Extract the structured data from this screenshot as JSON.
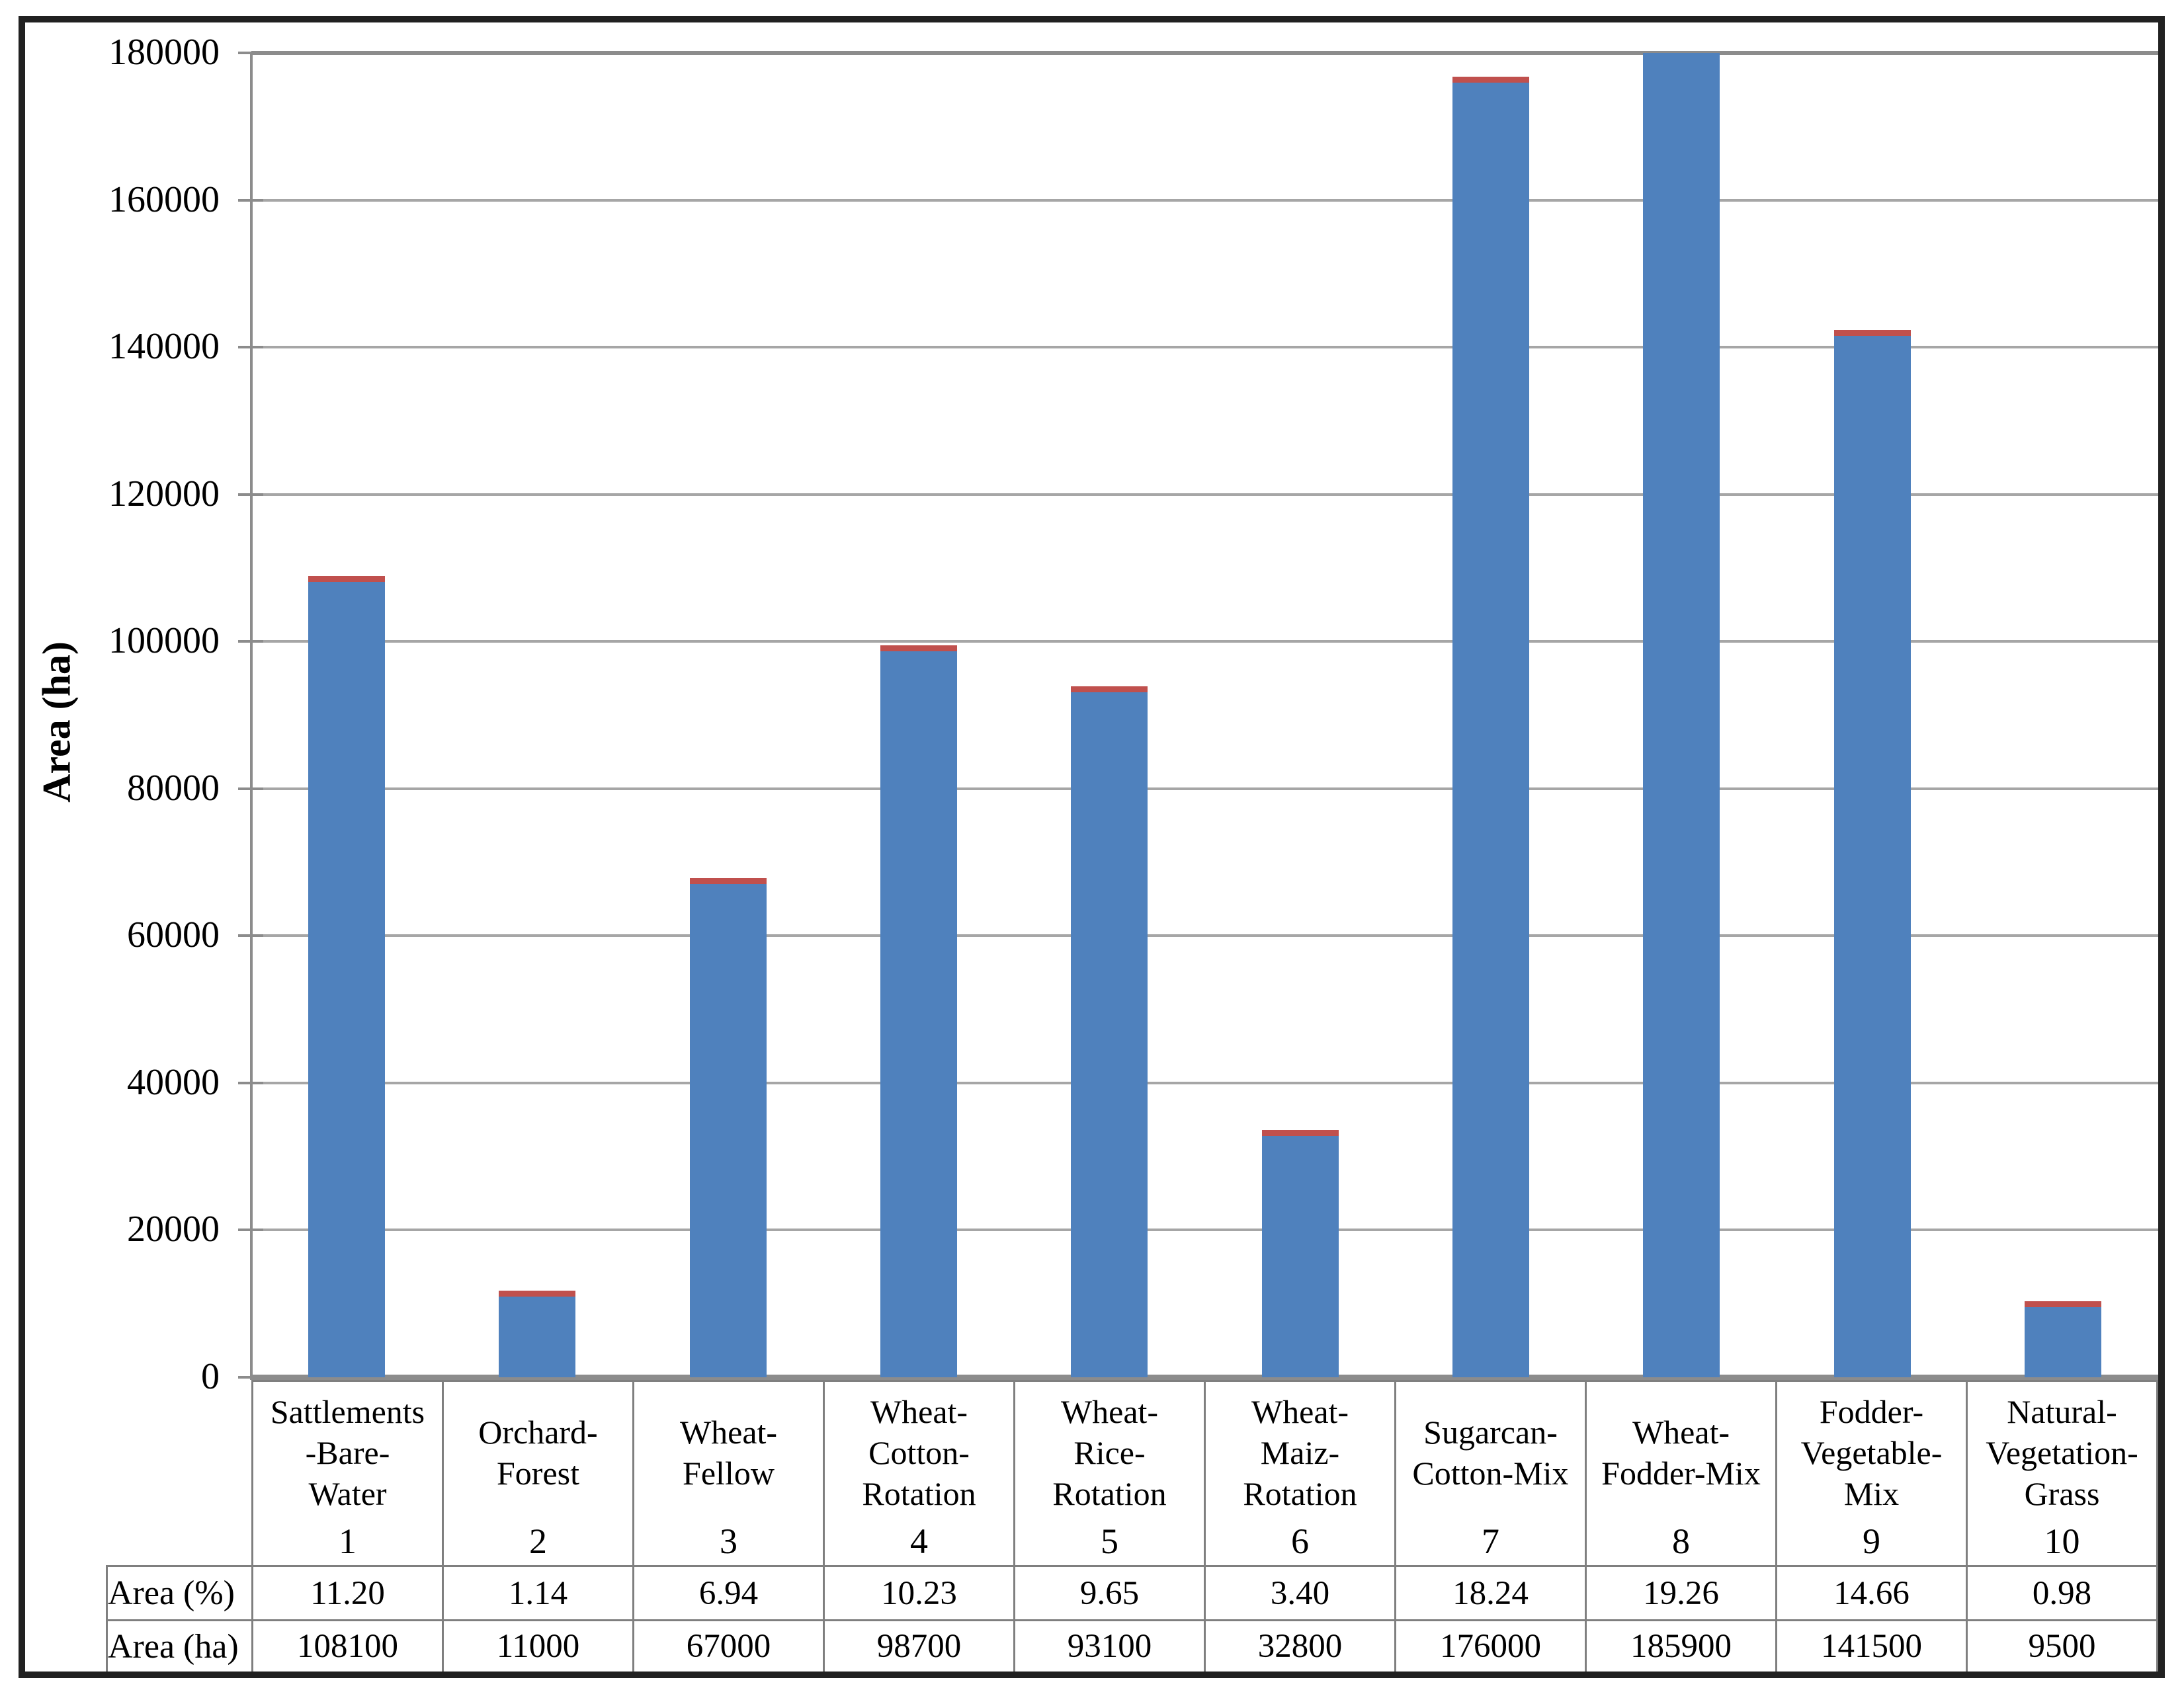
{
  "figure": {
    "background": "#ffffff",
    "frame_color": "#212121"
  },
  "chart_data": {
    "type": "bar",
    "title": "",
    "xlabel": "",
    "ylabel": "Area (ha)",
    "ylim": [
      0,
      180000
    ],
    "ytick_step": 20000,
    "yticks": [
      "0",
      "20000",
      "40000",
      "60000",
      "80000",
      "100000",
      "120000",
      "140000",
      "160000",
      "180000"
    ],
    "grid": "horizontal gridlines on",
    "legend_position": "none",
    "bar_color": "#4F81BD",
    "cap_color": "#C0504D",
    "cap_note": "thin red segment (~800 ha) capping each bar; bar 8 exceeds the axis maximum and is clipped with no visible cap",
    "categories": [
      "Sattlements-Bare-Water",
      "Orchard-Forest",
      "Wheat-Fellow",
      "Wheat-Cotton-Rotation",
      "Wheat-Rice-Rotation",
      "Wheat-Maiz-Rotation",
      "Sugarcan-Cotton-Mix",
      "Wheat-Fodder-Mix",
      "Fodder-Vegetable-Mix",
      "Natural-Vegetation-Grass"
    ],
    "category_codes": [
      "1",
      "2",
      "3",
      "4",
      "5",
      "6",
      "7",
      "8",
      "9",
      "10"
    ],
    "series": [
      {
        "name": "Area (ha)",
        "values": [
          108100,
          11000,
          67000,
          98700,
          93100,
          32800,
          176000,
          185900,
          141500,
          9500
        ]
      },
      {
        "name": "red cap",
        "approx_value_ha": 800
      }
    ]
  },
  "axis": {
    "y_title": "Area (ha)"
  },
  "table": {
    "row_headers": [
      "Area (%)",
      "Area (ha)"
    ],
    "columns": [
      {
        "lines": [
          "Sattlements",
          "-Bare-",
          "Water"
        ],
        "code": "1",
        "area_pct": "11.20",
        "area_ha": "108100"
      },
      {
        "lines": [
          "Orchard-",
          "Forest"
        ],
        "code": "2",
        "area_pct": "1.14",
        "area_ha": "11000"
      },
      {
        "lines": [
          "Wheat-",
          "Fellow"
        ],
        "code": "3",
        "area_pct": "6.94",
        "area_ha": "67000"
      },
      {
        "lines": [
          "Wheat-",
          "Cotton-",
          "Rotation"
        ],
        "code": "4",
        "area_pct": "10.23",
        "area_ha": "98700"
      },
      {
        "lines": [
          "Wheat-",
          "Rice-",
          "Rotation"
        ],
        "code": "5",
        "area_pct": "9.65",
        "area_ha": "93100"
      },
      {
        "lines": [
          "Wheat-",
          "Maiz-",
          "Rotation"
        ],
        "code": "6",
        "area_pct": "3.40",
        "area_ha": "32800"
      },
      {
        "lines": [
          "Sugarcan-",
          "Cotton-Mix"
        ],
        "code": "7",
        "area_pct": "18.24",
        "area_ha": "176000"
      },
      {
        "lines": [
          "Wheat-",
          "Fodder-Mix"
        ],
        "code": "8",
        "area_pct": "19.26",
        "area_ha": "185900"
      },
      {
        "lines": [
          "Fodder-",
          "Vegetable-",
          "Mix"
        ],
        "code": "9",
        "area_pct": "14.66",
        "area_ha": "141500"
      },
      {
        "lines": [
          "Natural-",
          "Vegetation-",
          "Grass"
        ],
        "code": "10",
        "area_pct": "0.98",
        "area_ha": "9500"
      }
    ]
  }
}
